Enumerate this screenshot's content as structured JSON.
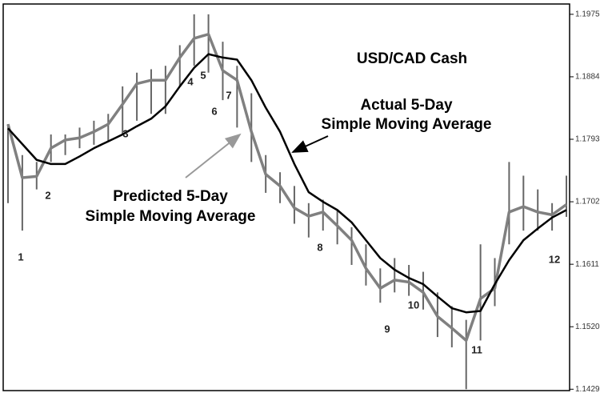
{
  "chart_data": {
    "type": "line",
    "title": "USD/CAD Cash",
    "annotations": {
      "actual": [
        "Actual 5-Day",
        "Simple Moving Average"
      ],
      "predicted": [
        "Predicted 5-Day",
        "Simple Moving Average"
      ]
    },
    "point_labels": [
      "1",
      "2",
      "3",
      "4",
      "5",
      "6",
      "7",
      "8",
      "9",
      "10",
      "11",
      "12"
    ],
    "series": [
      {
        "color": "#808080",
        "values": [
          1.1815,
          1.1737,
          1.1739,
          1.178,
          1.1792,
          1.1795,
          1.1804,
          1.1815,
          1.1844,
          1.1874,
          1.1879,
          1.1879,
          1.1912,
          1.194,
          1.1946,
          1.1893,
          1.1879,
          1.1804,
          1.1742,
          1.1725,
          1.1693,
          1.1681,
          1.1687,
          1.1667,
          1.1646,
          1.1605,
          1.1576,
          1.1588,
          1.1585,
          1.157,
          1.1535,
          1.1518,
          1.15,
          1.1561,
          1.1576,
          1.1687,
          1.1695,
          1.1687,
          1.1683,
          1.1698
        ]
      },
      {
        "color": "#000000",
        "values": [
          1.1809,
          1.1786,
          1.1763,
          1.1757,
          1.1757,
          1.1768,
          1.178,
          1.179,
          1.18,
          1.1812,
          1.1823,
          1.1841,
          1.187,
          1.1897,
          1.1917,
          1.1912,
          1.1909,
          1.1879,
          1.1839,
          1.1804,
          1.1757,
          1.1716,
          1.1702,
          1.169,
          1.1672,
          1.1646,
          1.162,
          1.1603,
          1.1591,
          1.1582,
          1.1564,
          1.1547,
          1.1541,
          1.1543,
          1.1582,
          1.1617,
          1.1646,
          1.1663,
          1.1679,
          1.169
        ]
      }
    ],
    "price_bars": {
      "color": "#666666",
      "high": [
        1.1815,
        1.177,
        1.176,
        1.18,
        1.18,
        1.181,
        1.182,
        1.183,
        1.187,
        1.189,
        1.1895,
        1.19,
        1.193,
        1.1975,
        1.1975,
        1.1935,
        1.19,
        1.186,
        1.177,
        1.1745,
        1.1725,
        1.17,
        1.1705,
        1.169,
        1.1665,
        1.164,
        1.1605,
        1.162,
        1.161,
        1.16,
        1.157,
        1.155,
        1.153,
        1.164,
        1.162,
        1.176,
        1.174,
        1.172,
        1.17,
        1.174
      ],
      "low": [
        1.17,
        1.166,
        1.172,
        1.176,
        1.177,
        1.178,
        1.1785,
        1.179,
        1.18,
        1.182,
        1.183,
        1.183,
        1.187,
        1.19,
        1.189,
        1.185,
        1.181,
        1.176,
        1.1715,
        1.17,
        1.167,
        1.165,
        1.166,
        1.164,
        1.161,
        1.158,
        1.1555,
        1.157,
        1.1565,
        1.1545,
        1.1505,
        1.149,
        1.1429,
        1.15,
        1.155,
        1.164,
        1.166,
        1.166,
        1.166,
        1.168
      ]
    },
    "ylim": [
      1.1427,
      1.199
    ],
    "yticks": [
      1.1975,
      1.1884,
      1.1793,
      1.1702,
      1.1611,
      {
        "value": 1.152,
        "label": "1.1520"
      },
      1.1429
    ]
  }
}
